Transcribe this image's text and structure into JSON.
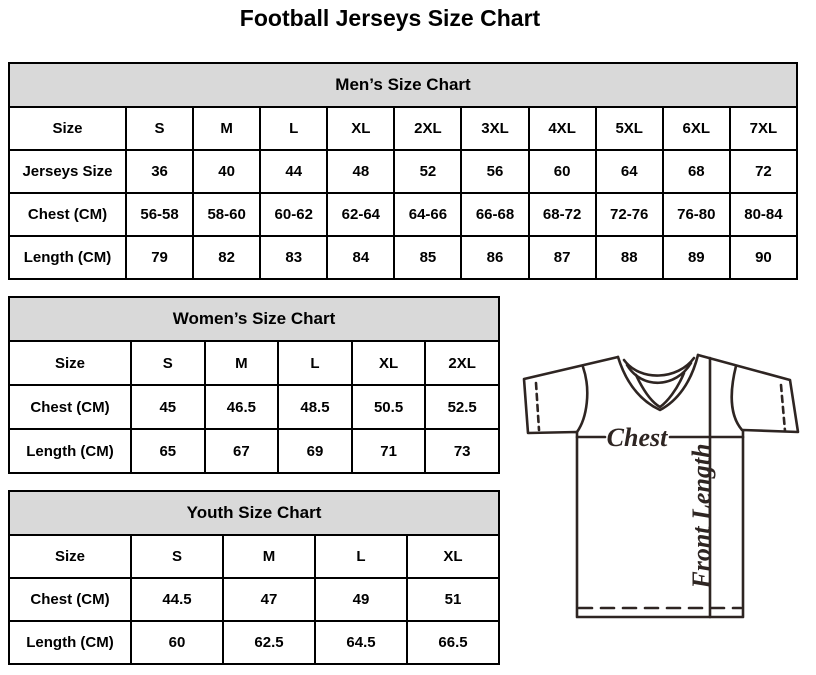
{
  "page_title": "Football Jerseys Size Chart",
  "tables": {
    "men": {
      "title": "Men’s Size Chart",
      "rows": [
        [
          "Size",
          "S",
          "M",
          "L",
          "XL",
          "2XL",
          "3XL",
          "4XL",
          "5XL",
          "6XL",
          "7XL"
        ],
        [
          "Jerseys Size",
          "36",
          "40",
          "44",
          "48",
          "52",
          "56",
          "60",
          "64",
          "68",
          "72"
        ],
        [
          "Chest (CM)",
          "56-58",
          "58-60",
          "60-62",
          "62-64",
          "64-66",
          "66-68",
          "68-72",
          "72-76",
          "76-80",
          "80-84"
        ],
        [
          "Length (CM)",
          "79",
          "82",
          "83",
          "84",
          "85",
          "86",
          "87",
          "88",
          "89",
          "90"
        ]
      ]
    },
    "women": {
      "title": "Women’s Size Chart",
      "rows": [
        [
          "Size",
          "S",
          "M",
          "L",
          "XL",
          "2XL"
        ],
        [
          "Chest (CM)",
          "45",
          "46.5",
          "48.5",
          "50.5",
          "52.5"
        ],
        [
          "Length (CM)",
          "65",
          "67",
          "69",
          "71",
          "73"
        ]
      ]
    },
    "youth": {
      "title": "Youth Size Chart",
      "rows": [
        [
          "Size",
          "S",
          "M",
          "L",
          "XL"
        ],
        [
          "Chest (CM)",
          "44.5",
          "47",
          "49",
          "51"
        ],
        [
          "Length (CM)",
          "60",
          "62.5",
          "64.5",
          "66.5"
        ]
      ]
    }
  },
  "diagram": {
    "chest_label": "Chest",
    "front_length_label": "Front Length"
  },
  "colors": {
    "header_bg": "#d9d9d9",
    "table_border": "#000000",
    "diagram_line": "#2e2522"
  }
}
